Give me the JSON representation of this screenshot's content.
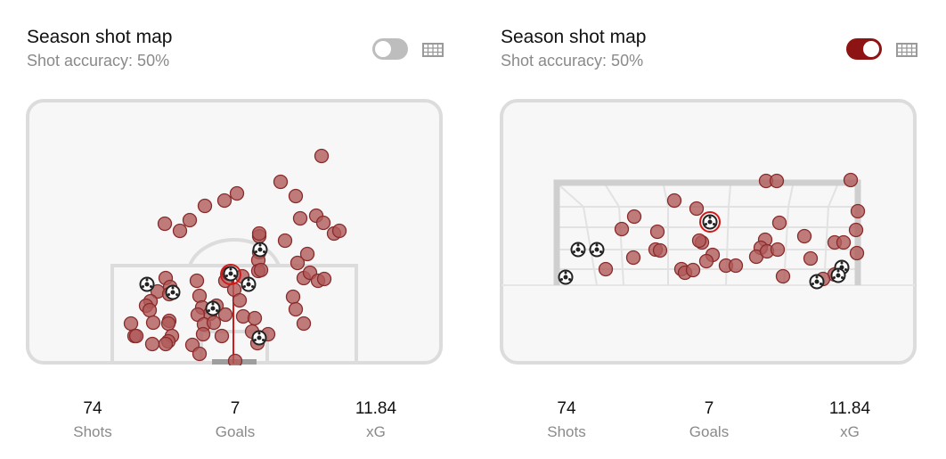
{
  "panels": [
    {
      "title": "Season shot map",
      "subtitle": "Shot accuracy: 50%",
      "toggle_on": false,
      "stats": [
        {
          "value": "74",
          "label": "Shots"
        },
        {
          "value": "7",
          "label": "Goals"
        },
        {
          "value": "11.84",
          "label": "xG"
        }
      ]
    },
    {
      "title": "Season shot map",
      "subtitle": "Shot accuracy: 50%",
      "toggle_on": true,
      "stats": [
        {
          "value": "74",
          "label": "Shots"
        },
        {
          "value": "7",
          "label": "Goals"
        },
        {
          "value": "11.84",
          "label": "xG"
        }
      ]
    }
  ],
  "colors": {
    "shot_fill": "#b05a5a",
    "shot_stroke": "#8a2a2a",
    "highlight": "#d11a1a",
    "toggle_on": "#8e1414",
    "toggle_off": "#bdbdbd",
    "pitch_line": "#dcdcdc",
    "pitch_bg": "#f7f7f7"
  },
  "icons": {
    "toggle": "toggle-switch-icon",
    "goal_view": "goal-net-icon",
    "goal_marker": "football-icon"
  }
}
